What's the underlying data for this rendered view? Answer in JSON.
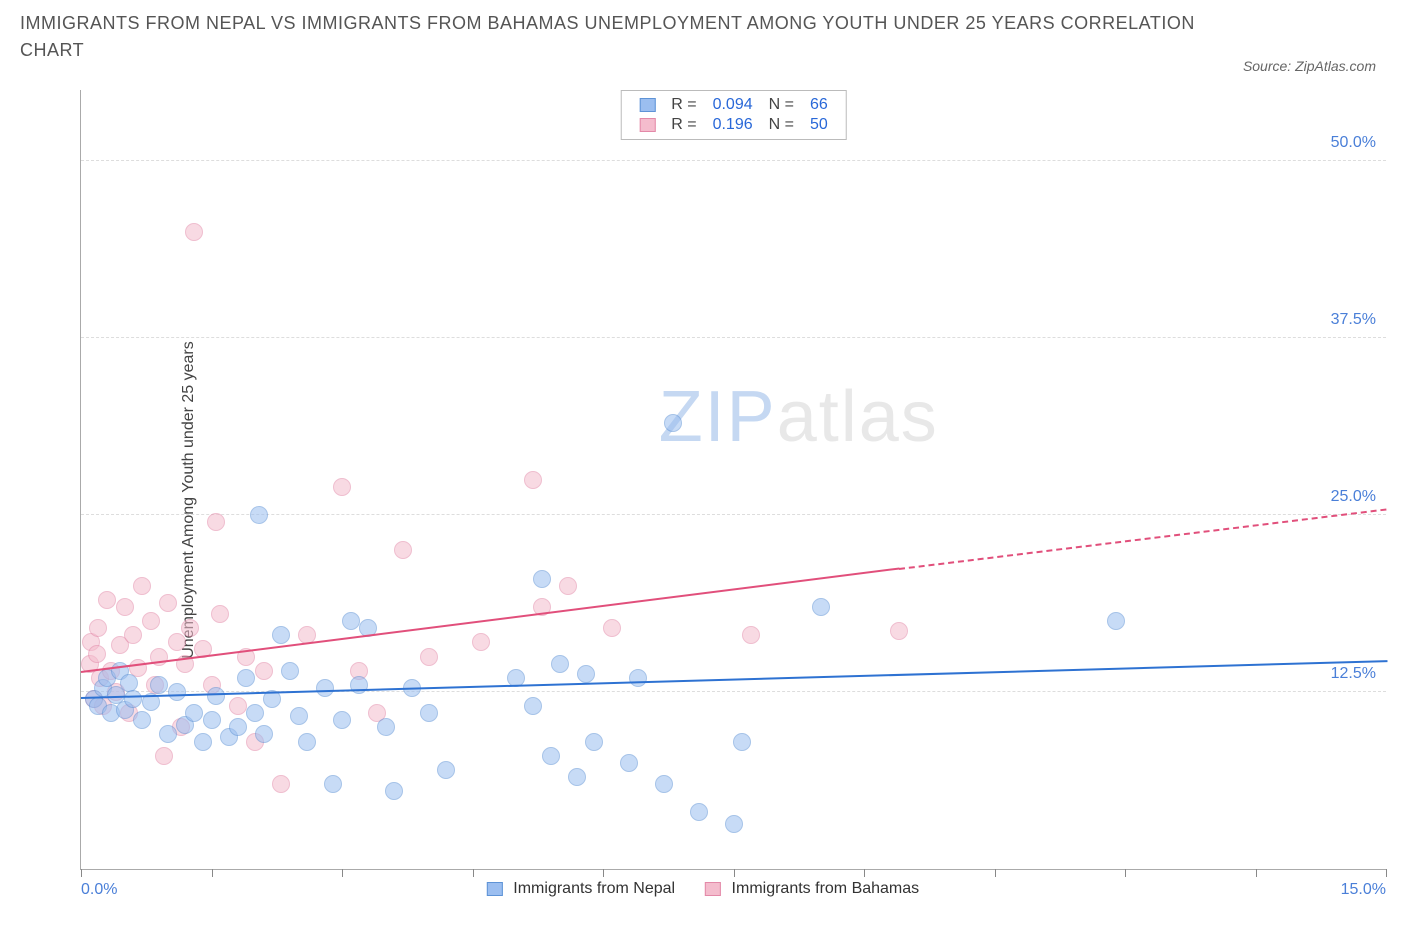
{
  "title": "IMMIGRANTS FROM NEPAL VS IMMIGRANTS FROM BAHAMAS UNEMPLOYMENT AMONG YOUTH UNDER 25 YEARS CORRELATION CHART",
  "source": "Source: ZipAtlas.com",
  "y_axis_label": "Unemployment Among Youth under 25 years",
  "watermark": {
    "part1": "ZIP",
    "part2": "atlas"
  },
  "chart": {
    "type": "scatter",
    "xlim": [
      0,
      15
    ],
    "ylim": [
      0,
      55
    ],
    "x_ticks": [
      0,
      1.5,
      3,
      4.5,
      6,
      7.5,
      9,
      10.5,
      12,
      13.5,
      15
    ],
    "x_tick_labels": {
      "0": "0.0%",
      "15": "15.0%"
    },
    "y_gridlines": [
      12.5,
      25,
      37.5,
      50
    ],
    "y_tick_labels": {
      "12.5": "12.5%",
      "25": "25.0%",
      "37.5": "37.5%",
      "50": "50.0%"
    },
    "background_color": "#ffffff",
    "grid_color": "#dddddd",
    "axis_color": "#888888",
    "marker_radius": 9,
    "marker_opacity": 0.55,
    "colors": {
      "series_a_fill": "#9bbef0",
      "series_a_stroke": "#5e93d6",
      "series_b_fill": "#f4bccd",
      "series_b_stroke": "#e389a8",
      "trend_a": "#2e72d2",
      "trend_b": "#e14f7b",
      "stat_value": "#2968d8",
      "tick_label": "#4a7fd8"
    }
  },
  "stats_legend": [
    {
      "r_label": "R =",
      "r": "0.094",
      "n_label": "N =",
      "n": "66"
    },
    {
      "r_label": "R =",
      "r": "0.196",
      "n_label": "N =",
      "n": "50"
    }
  ],
  "bottom_legend": [
    {
      "label": "Immigrants from Nepal"
    },
    {
      "label": "Immigrants from Bahamas"
    }
  ],
  "series_a": {
    "name": "Immigrants from Nepal",
    "trend": {
      "solid": {
        "x1": 0,
        "y1": 12.2,
        "x2": 15,
        "y2": 14.8
      }
    },
    "points": [
      {
        "x": 0.15,
        "y": 12.0
      },
      {
        "x": 0.2,
        "y": 11.5
      },
      {
        "x": 0.25,
        "y": 12.8
      },
      {
        "x": 0.3,
        "y": 13.5
      },
      {
        "x": 0.35,
        "y": 11.0
      },
      {
        "x": 0.4,
        "y": 12.3
      },
      {
        "x": 0.45,
        "y": 14.0
      },
      {
        "x": 0.5,
        "y": 11.2
      },
      {
        "x": 0.55,
        "y": 13.1
      },
      {
        "x": 0.6,
        "y": 12.0
      },
      {
        "x": 0.7,
        "y": 10.5
      },
      {
        "x": 0.8,
        "y": 11.8
      },
      {
        "x": 0.9,
        "y": 13.0
      },
      {
        "x": 1.0,
        "y": 9.5
      },
      {
        "x": 1.1,
        "y": 12.5
      },
      {
        "x": 1.2,
        "y": 10.2
      },
      {
        "x": 1.3,
        "y": 11.0
      },
      {
        "x": 1.4,
        "y": 9.0
      },
      {
        "x": 1.5,
        "y": 10.5
      },
      {
        "x": 1.55,
        "y": 12.2
      },
      {
        "x": 1.7,
        "y": 9.3
      },
      {
        "x": 1.8,
        "y": 10.0
      },
      {
        "x": 1.9,
        "y": 13.5
      },
      {
        "x": 2.0,
        "y": 11.0
      },
      {
        "x": 2.05,
        "y": 25.0
      },
      {
        "x": 2.1,
        "y": 9.5
      },
      {
        "x": 2.2,
        "y": 12.0
      },
      {
        "x": 2.3,
        "y": 16.5
      },
      {
        "x": 2.4,
        "y": 14.0
      },
      {
        "x": 2.5,
        "y": 10.8
      },
      {
        "x": 2.6,
        "y": 9.0
      },
      {
        "x": 2.8,
        "y": 12.8
      },
      {
        "x": 2.9,
        "y": 6.0
      },
      {
        "x": 3.0,
        "y": 10.5
      },
      {
        "x": 3.1,
        "y": 17.5
      },
      {
        "x": 3.2,
        "y": 13.0
      },
      {
        "x": 3.3,
        "y": 17.0
      },
      {
        "x": 3.5,
        "y": 10.0
      },
      {
        "x": 3.6,
        "y": 5.5
      },
      {
        "x": 3.8,
        "y": 12.8
      },
      {
        "x": 4.0,
        "y": 11.0
      },
      {
        "x": 4.2,
        "y": 7.0
      },
      {
        "x": 5.0,
        "y": 13.5
      },
      {
        "x": 5.2,
        "y": 11.5
      },
      {
        "x": 5.3,
        "y": 20.5
      },
      {
        "x": 5.4,
        "y": 8.0
      },
      {
        "x": 5.5,
        "y": 14.5
      },
      {
        "x": 5.7,
        "y": 6.5
      },
      {
        "x": 5.8,
        "y": 13.8
      },
      {
        "x": 5.9,
        "y": 9.0
      },
      {
        "x": 6.3,
        "y": 7.5
      },
      {
        "x": 6.4,
        "y": 13.5
      },
      {
        "x": 6.7,
        "y": 6.0
      },
      {
        "x": 6.8,
        "y": 31.5
      },
      {
        "x": 7.1,
        "y": 4.0
      },
      {
        "x": 7.5,
        "y": 3.2
      },
      {
        "x": 7.6,
        "y": 9.0
      },
      {
        "x": 8.5,
        "y": 18.5
      },
      {
        "x": 11.9,
        "y": 17.5
      }
    ]
  },
  "series_b": {
    "name": "Immigrants from Bahamas",
    "trend": {
      "solid": {
        "x1": 0,
        "y1": 14.0,
        "x2": 9.4,
        "y2": 21.3
      },
      "dashed": {
        "x1": 9.4,
        "y1": 21.3,
        "x2": 15,
        "y2": 25.5
      }
    },
    "points": [
      {
        "x": 0.1,
        "y": 14.5
      },
      {
        "x": 0.12,
        "y": 16.0
      },
      {
        "x": 0.15,
        "y": 12.0
      },
      {
        "x": 0.18,
        "y": 15.2
      },
      {
        "x": 0.2,
        "y": 17.0
      },
      {
        "x": 0.22,
        "y": 13.5
      },
      {
        "x": 0.25,
        "y": 11.5
      },
      {
        "x": 0.3,
        "y": 19.0
      },
      {
        "x": 0.35,
        "y": 14.0
      },
      {
        "x": 0.4,
        "y": 12.5
      },
      {
        "x": 0.45,
        "y": 15.8
      },
      {
        "x": 0.5,
        "y": 18.5
      },
      {
        "x": 0.55,
        "y": 11.0
      },
      {
        "x": 0.6,
        "y": 16.5
      },
      {
        "x": 0.65,
        "y": 14.2
      },
      {
        "x": 0.7,
        "y": 20.0
      },
      {
        "x": 0.8,
        "y": 17.5
      },
      {
        "x": 0.85,
        "y": 13.0
      },
      {
        "x": 0.9,
        "y": 15.0
      },
      {
        "x": 0.95,
        "y": 8.0
      },
      {
        "x": 1.0,
        "y": 18.8
      },
      {
        "x": 1.1,
        "y": 16.0
      },
      {
        "x": 1.15,
        "y": 10.0
      },
      {
        "x": 1.2,
        "y": 14.5
      },
      {
        "x": 1.25,
        "y": 17.0
      },
      {
        "x": 1.3,
        "y": 45.0
      },
      {
        "x": 1.4,
        "y": 15.5
      },
      {
        "x": 1.5,
        "y": 13.0
      },
      {
        "x": 1.55,
        "y": 24.5
      },
      {
        "x": 1.6,
        "y": 18.0
      },
      {
        "x": 1.8,
        "y": 11.5
      },
      {
        "x": 1.9,
        "y": 15.0
      },
      {
        "x": 2.0,
        "y": 9.0
      },
      {
        "x": 2.1,
        "y": 14.0
      },
      {
        "x": 2.3,
        "y": 6.0
      },
      {
        "x": 2.6,
        "y": 16.5
      },
      {
        "x": 3.0,
        "y": 27.0
      },
      {
        "x": 3.2,
        "y": 14.0
      },
      {
        "x": 3.4,
        "y": 11.0
      },
      {
        "x": 3.7,
        "y": 22.5
      },
      {
        "x": 4.0,
        "y": 15.0
      },
      {
        "x": 4.6,
        "y": 16.0
      },
      {
        "x": 5.2,
        "y": 27.5
      },
      {
        "x": 5.3,
        "y": 18.5
      },
      {
        "x": 5.6,
        "y": 20.0
      },
      {
        "x": 6.1,
        "y": 17.0
      },
      {
        "x": 7.7,
        "y": 16.5
      },
      {
        "x": 9.4,
        "y": 16.8
      }
    ]
  }
}
